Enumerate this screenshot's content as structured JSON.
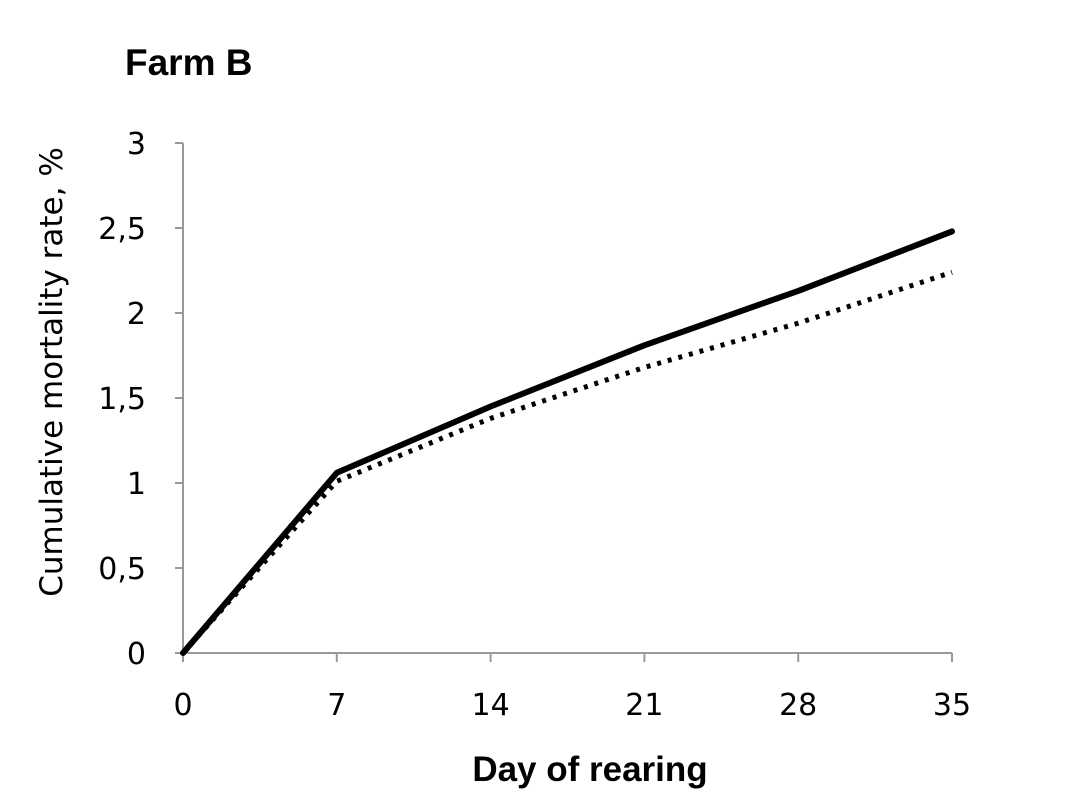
{
  "chart_data": {
    "type": "line",
    "title": "Farm B",
    "xlabel": "Day of rearing",
    "ylabel": "Cumulative mortality rate, %",
    "x": [
      0,
      7,
      14,
      21,
      28,
      35
    ],
    "x_tick_labels": [
      "0",
      "7",
      "14",
      "21",
      "28",
      "35"
    ],
    "y_tick_labels": [
      "0",
      "0,5",
      "1",
      "1,5",
      "2",
      "2,5",
      "3"
    ],
    "y_ticks": [
      0,
      0.5,
      1,
      1.5,
      2,
      2.5,
      3
    ],
    "xlim": [
      0,
      35
    ],
    "ylim": [
      0,
      3
    ],
    "grid": false,
    "series": [
      {
        "style": "solid",
        "color": "#000000",
        "values": [
          0,
          1.06,
          1.45,
          1.81,
          2.13,
          2.48
        ]
      },
      {
        "style": "dotted",
        "color": "#000000",
        "values": [
          0,
          1.01,
          1.38,
          1.68,
          1.94,
          2.24
        ]
      }
    ]
  }
}
